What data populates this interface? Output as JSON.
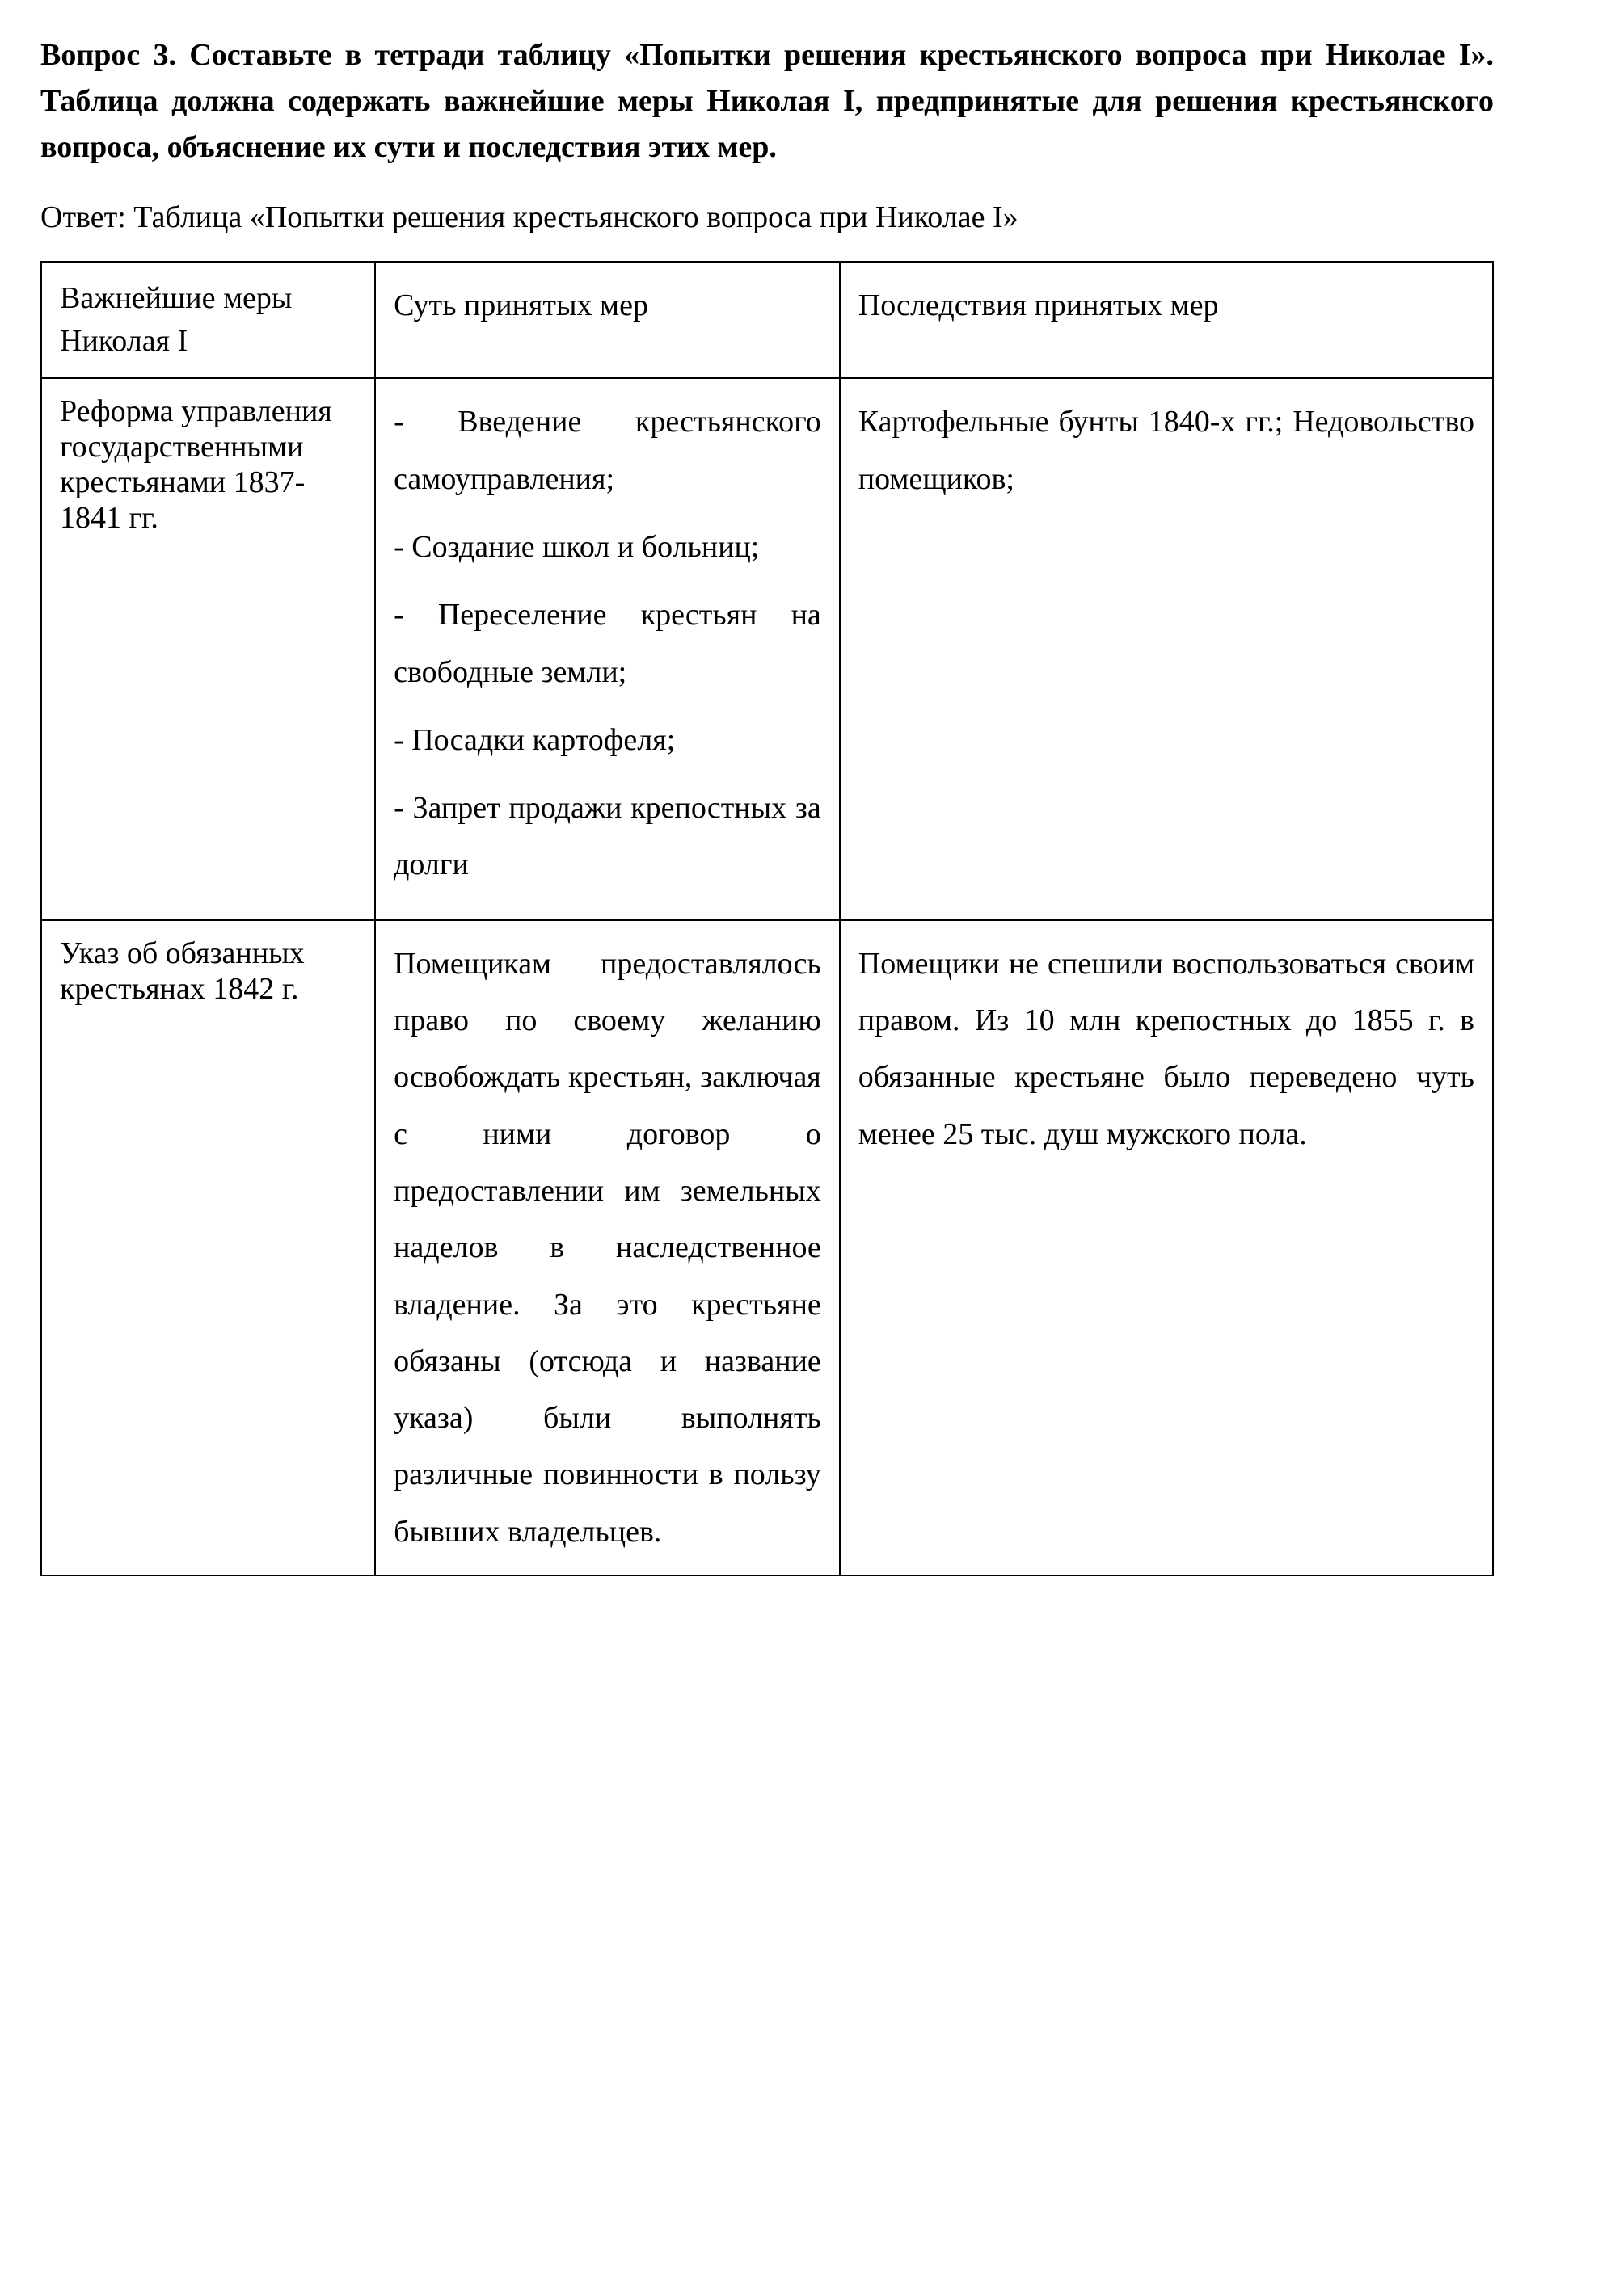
{
  "question": {
    "label": "Вопрос 3. Составьте в тетради таблицу «Попытки решения крестьянского вопроса при Николае I». Таблица должна содержать важнейшие меры Николая I, предпринятые для решения крестьянского вопроса, объяснение их сути и последствия этих мер."
  },
  "answer": {
    "prefix": "Ответ: Таблица «Попытки решения крестьянского вопроса при Николае I»"
  },
  "table": {
    "headers": {
      "col1": "Важнейшие меры Николая I",
      "col2": "Суть принятых мер",
      "col3": "Последствия принятых мер"
    },
    "rows": [
      {
        "measure": "Реформа управления государственными крестьянами 1837-1841 гг.",
        "essence": "- Введение крестьянского самоуправления;\n- Создание школ и больниц;\n- Переселение крестьян на свободные земли;\n- Посадки картофеля;\n- Запрет продажи крепостных за долги",
        "consequences": "Картофельные бунты 1840-х гг.; Недовольство помещиков;"
      },
      {
        "measure": "Указ об обязанных крестьянах 1842 г.",
        "essence": "Помещикам предоставлялось право по своему желанию освобождать крестьян, заключая с ними договор о предоставлении им земельных наделов в наследственное владение. За это крестьяне обязаны (отсюда и название указа) были выполнять различные повинности в пользу бывших владельцев.",
        "consequences": "Помещики не спешили воспользоваться своим правом. Из 10 млн крепостных до 1855 г. в обязанные крестьяне было переведено чуть менее 25 тыс. душ мужского пола."
      }
    ]
  },
  "styles": {
    "background_color": "#ffffff",
    "text_color": "#000000",
    "border_color": "#000000",
    "font_family": "Times New Roman",
    "body_fontsize": 38,
    "question_fontweight": "bold",
    "line_height": 1.5,
    "cell_line_height": 1.85,
    "border_width": 2,
    "col_widths": [
      "23%",
      "32%",
      "45%"
    ]
  }
}
